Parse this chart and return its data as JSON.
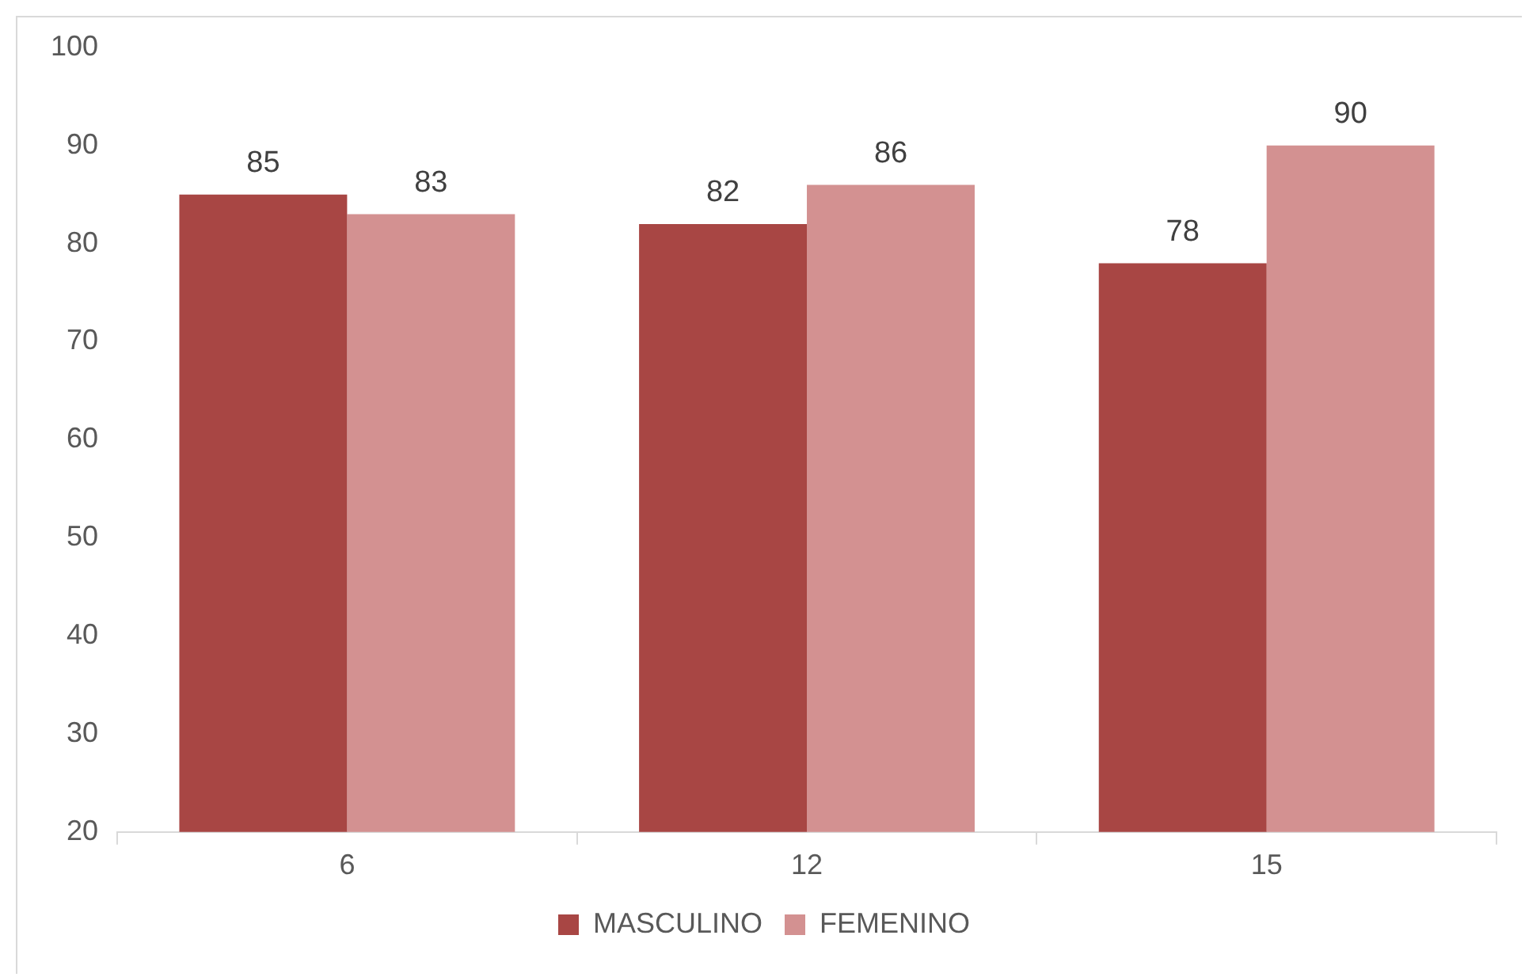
{
  "chart_data": {
    "type": "bar",
    "categories": [
      "6",
      "12",
      "15"
    ],
    "series": [
      {
        "name": "MASCULINO",
        "color": "#a84644",
        "values": [
          85,
          82,
          78
        ]
      },
      {
        "name": "FEMENINO",
        "color": "#d39191",
        "values": [
          83,
          86,
          90
        ]
      }
    ],
    "ylim": [
      20,
      100
    ],
    "yticks": [
      20,
      30,
      40,
      50,
      60,
      70,
      80,
      90,
      100
    ],
    "grid": false,
    "legend": "bottom",
    "data_labels": true
  }
}
